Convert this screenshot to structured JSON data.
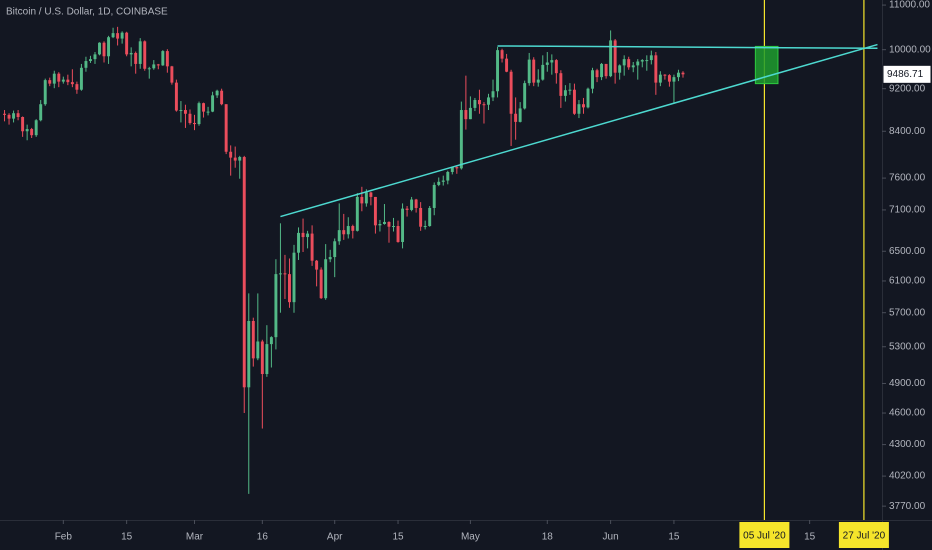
{
  "chart_data": {
    "type": "candlestick",
    "title": "Bitcoin / U.S. Dollar, 1D, COINBASE",
    "x": [
      "2020-01-19",
      "2020-01-20",
      "2020-01-21",
      "2020-01-22",
      "2020-01-23",
      "2020-01-24",
      "2020-01-25",
      "2020-01-26",
      "2020-01-27",
      "2020-01-28",
      "2020-01-29",
      "2020-01-30",
      "2020-01-31",
      "2020-02-01",
      "2020-02-02",
      "2020-02-03",
      "2020-02-04",
      "2020-02-05",
      "2020-02-06",
      "2020-02-07",
      "2020-02-08",
      "2020-02-09",
      "2020-02-10",
      "2020-02-11",
      "2020-02-12",
      "2020-02-13",
      "2020-02-14",
      "2020-02-15",
      "2020-02-16",
      "2020-02-17",
      "2020-02-18",
      "2020-02-19",
      "2020-02-20",
      "2020-02-21",
      "2020-02-22",
      "2020-02-23",
      "2020-02-24",
      "2020-02-25",
      "2020-02-26",
      "2020-02-27",
      "2020-02-28",
      "2020-02-29",
      "2020-03-01",
      "2020-03-02",
      "2020-03-03",
      "2020-03-04",
      "2020-03-05",
      "2020-03-06",
      "2020-03-07",
      "2020-03-08",
      "2020-03-09",
      "2020-03-10",
      "2020-03-11",
      "2020-03-12",
      "2020-03-13",
      "2020-03-14",
      "2020-03-15",
      "2020-03-16",
      "2020-03-17",
      "2020-03-18",
      "2020-03-19",
      "2020-03-20",
      "2020-03-21",
      "2020-03-22",
      "2020-03-23",
      "2020-03-24",
      "2020-03-25",
      "2020-03-26",
      "2020-03-27",
      "2020-03-28",
      "2020-03-29",
      "2020-03-30",
      "2020-03-31",
      "2020-04-01",
      "2020-04-02",
      "2020-04-03",
      "2020-04-04",
      "2020-04-05",
      "2020-04-06",
      "2020-04-07",
      "2020-04-08",
      "2020-04-09",
      "2020-04-10",
      "2020-04-11",
      "2020-04-12",
      "2020-04-13",
      "2020-04-14",
      "2020-04-15",
      "2020-04-16",
      "2020-04-17",
      "2020-04-18",
      "2020-04-19",
      "2020-04-20",
      "2020-04-21",
      "2020-04-22",
      "2020-04-23",
      "2020-04-24",
      "2020-04-25",
      "2020-04-26",
      "2020-04-27",
      "2020-04-28",
      "2020-04-29",
      "2020-04-30",
      "2020-05-01",
      "2020-05-02",
      "2020-05-03",
      "2020-05-04",
      "2020-05-05",
      "2020-05-06",
      "2020-05-07",
      "2020-05-08",
      "2020-05-09",
      "2020-05-10",
      "2020-05-11",
      "2020-05-12",
      "2020-05-13",
      "2020-05-14",
      "2020-05-15",
      "2020-05-16",
      "2020-05-17",
      "2020-05-18",
      "2020-05-19",
      "2020-05-20",
      "2020-05-21",
      "2020-05-22",
      "2020-05-23",
      "2020-05-24",
      "2020-05-25",
      "2020-05-26",
      "2020-05-27",
      "2020-05-28",
      "2020-05-29",
      "2020-05-30",
      "2020-05-31",
      "2020-06-01",
      "2020-06-02",
      "2020-06-03",
      "2020-06-04",
      "2020-06-05",
      "2020-06-06",
      "2020-06-07",
      "2020-06-08",
      "2020-06-09",
      "2020-06-10",
      "2020-06-11",
      "2020-06-12",
      "2020-06-13",
      "2020-06-14",
      "2020-06-15",
      "2020-06-16",
      "2020-06-17"
    ],
    "open": [
      8720,
      8700,
      8630,
      8730,
      8660,
      8400,
      8440,
      8330,
      8600,
      8900,
      9370,
      9300,
      9500,
      9340,
      9380,
      9330,
      9290,
      9180,
      9620,
      9760,
      9800,
      9900,
      10150,
      9860,
      10270,
      10360,
      10240,
      10370,
      9900,
      9930,
      9700,
      10180,
      9600,
      9610,
      9690,
      9670,
      9970,
      9650,
      9320,
      8780,
      8790,
      8720,
      8550,
      8530,
      8920,
      8760,
      8760,
      9070,
      9160,
      8900,
      8040,
      7940,
      7890,
      7950,
      4860,
      5600,
      5170,
      5360,
      5000,
      5330,
      5410,
      6190,
      6200,
      6190,
      5830,
      6480,
      6760,
      6700,
      6750,
      6370,
      6250,
      5880,
      6390,
      6420,
      6640,
      6800,
      6740,
      6860,
      6790,
      7300,
      7200,
      7370,
      7300,
      6870,
      6890,
      6920,
      6850,
      6860,
      6630,
      7120,
      7100,
      7260,
      7130,
      6850,
      6860,
      7130,
      7490,
      7540,
      7560,
      7700,
      7780,
      7760,
      8790,
      8620,
      8830,
      8980,
      8900,
      8890,
      9030,
      9150,
      9990,
      9810,
      9540,
      8720,
      8570,
      8820,
      9310,
      9790,
      9320,
      9380,
      9680,
      9730,
      9780,
      9510,
      9060,
      9170,
      9180,
      8720,
      8900,
      8840,
      9200,
      9570,
      9430,
      9700,
      9450,
      10200,
      9520,
      9670,
      9800,
      9630,
      9670,
      9750,
      9780,
      9780,
      9880,
      9320,
      9480,
      9470,
      9340,
      9430,
      9520
    ],
    "high": [
      8790,
      8730,
      8780,
      8790,
      8670,
      8520,
      8460,
      8620,
      8980,
      9400,
      9420,
      9560,
      9530,
      9440,
      9480,
      9590,
      9340,
      9700,
      9850,
      9870,
      9950,
      10160,
      10180,
      10300,
      10480,
      10500,
      10400,
      10390,
      10050,
      9960,
      10250,
      10200,
      9640,
      9780,
      9700,
      9990,
      10010,
      9660,
      9380,
      8960,
      8890,
      8800,
      8700,
      8950,
      8930,
      8850,
      9140,
      9180,
      9200,
      8900,
      8150,
      8130,
      7970,
      7970,
      5940,
      5640,
      5940,
      5380,
      5550,
      5420,
      6390,
      6900,
      6450,
      6400,
      6590,
      6840,
      6970,
      6790,
      6870,
      6380,
      6280,
      6600,
      6520,
      6680,
      7200,
      7040,
      6990,
      6880,
      7360,
      7460,
      7420,
      7380,
      7300,
      6950,
      7190,
      6930,
      6980,
      6940,
      7200,
      7160,
      7300,
      7270,
      7220,
      6940,
      7160,
      7530,
      7610,
      7640,
      7720,
      7790,
      7800,
      8950,
      9460,
      9050,
      9020,
      9180,
      8940,
      9100,
      9380,
      10060,
      10020,
      9910,
      9580,
      9030,
      8940,
      9360,
      9930,
      9840,
      9590,
      9880,
      9950,
      9900,
      9800,
      9570,
      9270,
      9310,
      9300,
      8980,
      9020,
      9220,
      9620,
      9600,
      9720,
      9700,
      10420,
      10230,
      9690,
      9880,
      9850,
      9740,
      9800,
      9800,
      9880,
      9980,
      9950,
      9550,
      9490,
      9490,
      9480,
      9580,
      9550
    ],
    "low": [
      8580,
      8520,
      8560,
      8600,
      8300,
      8240,
      8280,
      8300,
      8580,
      8870,
      9250,
      9210,
      9230,
      9300,
      9270,
      9230,
      9100,
      9160,
      9540,
      9720,
      9700,
      9880,
      9730,
      9700,
      10250,
      10090,
      10130,
      9860,
      9650,
      9500,
      9600,
      9560,
      9400,
      9580,
      9590,
      9660,
      9520,
      9280,
      8760,
      8560,
      8460,
      8520,
      8420,
      8500,
      8650,
      8690,
      8750,
      9020,
      8880,
      8000,
      7640,
      7770,
      7590,
      4600,
      3870,
      5080,
      5150,
      4450,
      4970,
      5070,
      5270,
      5700,
      5870,
      5760,
      5700,
      6380,
      6490,
      6540,
      6300,
      6030,
      5870,
      5860,
      6350,
      6150,
      6590,
      6660,
      6680,
      6680,
      6780,
      7080,
      7150,
      7170,
      6750,
      6780,
      6880,
      6620,
      6780,
      6620,
      6540,
      7000,
      7080,
      7060,
      6790,
      6810,
      6850,
      7020,
      7470,
      7480,
      7500,
      7660,
      7670,
      7740,
      8430,
      8620,
      8770,
      8720,
      8540,
      8790,
      8960,
      9030,
      9730,
      9530,
      8140,
      8250,
      8560,
      8800,
      9260,
      9250,
      9240,
      9360,
      9540,
      9480,
      9300,
      8830,
      8950,
      9080,
      8700,
      8640,
      8720,
      8820,
      9110,
      9330,
      9370,
      9400,
      9430,
      9300,
      9380,
      9460,
      9580,
      9530,
      9380,
      9630,
      9560,
      9690,
      9080,
      9250,
      9380,
      9240,
      8920,
      9350,
      9420
    ],
    "close": [
      8700,
      8630,
      8730,
      8660,
      8400,
      8440,
      8330,
      8600,
      8900,
      9370,
      9300,
      9500,
      9340,
      9380,
      9330,
      9290,
      9180,
      9620,
      9760,
      9800,
      9900,
      10150,
      9860,
      10270,
      10360,
      10240,
      10370,
      9900,
      9930,
      9700,
      10180,
      9600,
      9610,
      9690,
      9670,
      9970,
      9650,
      9320,
      8780,
      8790,
      8720,
      8550,
      8530,
      8920,
      8760,
      8760,
      9070,
      9160,
      8900,
      8040,
      7940,
      7890,
      7950,
      4860,
      5600,
      5170,
      5360,
      5000,
      5330,
      5410,
      6190,
      6200,
      6190,
      5830,
      6480,
      6760,
      6700,
      6750,
      6370,
      6250,
      5880,
      6390,
      6420,
      6640,
      6800,
      6740,
      6860,
      6790,
      7300,
      7200,
      7370,
      7300,
      6870,
      6890,
      6920,
      6850,
      6860,
      6630,
      7120,
      7100,
      7260,
      7130,
      6850,
      6860,
      7130,
      7490,
      7540,
      7560,
      7700,
      7780,
      7760,
      8790,
      8620,
      8830,
      8980,
      8900,
      8890,
      9030,
      9150,
      9990,
      9810,
      9540,
      8720,
      8570,
      8820,
      9310,
      9790,
      9320,
      9380,
      9680,
      9730,
      9780,
      9510,
      9060,
      9170,
      9180,
      8720,
      8900,
      8840,
      9200,
      9570,
      9430,
      9700,
      9450,
      10200,
      9520,
      9670,
      9800,
      9630,
      9670,
      9750,
      9780,
      9780,
      9880,
      9320,
      9480,
      9470,
      9340,
      9430,
      9520,
      9486.71
    ],
    "up_color": "#53b987",
    "down_color": "#eb4d5c",
    "xlim": [
      "2020-01-18",
      "2020-07-31"
    ],
    "ylim": [
      3660,
      11120
    ],
    "log_scale": true,
    "grid": false,
    "xticks": [
      {
        "value": "2020-02-01",
        "label": "Feb"
      },
      {
        "value": "2020-02-15",
        "label": "15"
      },
      {
        "value": "2020-03-01",
        "label": "Mar"
      },
      {
        "value": "2020-03-16",
        "label": "16"
      },
      {
        "value": "2020-04-01",
        "label": "Apr"
      },
      {
        "value": "2020-04-15",
        "label": "15"
      },
      {
        "value": "2020-05-01",
        "label": "May"
      },
      {
        "value": "2020-05-18",
        "label": "18"
      },
      {
        "value": "2020-06-01",
        "label": "Jun"
      },
      {
        "value": "2020-06-15",
        "label": "15"
      },
      {
        "value": "2020-07-15",
        "label": "15"
      }
    ],
    "yticks": [
      {
        "value": 11000,
        "label": "11000.00"
      },
      {
        "value": 10000,
        "label": "10000.00"
      },
      {
        "value": 9200,
        "label": "9200.00"
      },
      {
        "value": 8400,
        "label": "8400.00"
      },
      {
        "value": 7600,
        "label": "7600.00"
      },
      {
        "value": 7100,
        "label": "7100.00"
      },
      {
        "value": 6500,
        "label": "6500.00"
      },
      {
        "value": 6100,
        "label": "6100.00"
      },
      {
        "value": 5700,
        "label": "5700.00"
      },
      {
        "value": 5300,
        "label": "5300.00"
      },
      {
        "value": 4900,
        "label": "4900.00"
      },
      {
        "value": 4600,
        "label": "4600.00"
      },
      {
        "value": 4300,
        "label": "4300.00"
      },
      {
        "value": 4020,
        "label": "4020.00"
      },
      {
        "value": 3770,
        "label": "3770.00"
      }
    ],
    "annotations": {
      "trend_lines": [
        {
          "x": [
            "2020-05-07",
            "2020-07-30"
          ],
          "values": [
            10080,
            10030
          ],
          "color": "#4dd9d0"
        },
        {
          "x": [
            "2020-03-20",
            "2020-07-30"
          ],
          "values": [
            7000,
            10110
          ],
          "color": "#4dd9d0"
        }
      ],
      "box": {
        "x": [
          "2020-07-03",
          "2020-07-08"
        ],
        "values": [
          10070,
          9300
        ],
        "color": "#1f9c2e"
      },
      "vlines": [
        {
          "x": "2020-07-05",
          "label": "05 Jul '20",
          "color": "#f5e52b"
        },
        {
          "x": "2020-07-27",
          "label": "27 Jul '20",
          "color": "#f5e52b"
        }
      ]
    }
  }
}
